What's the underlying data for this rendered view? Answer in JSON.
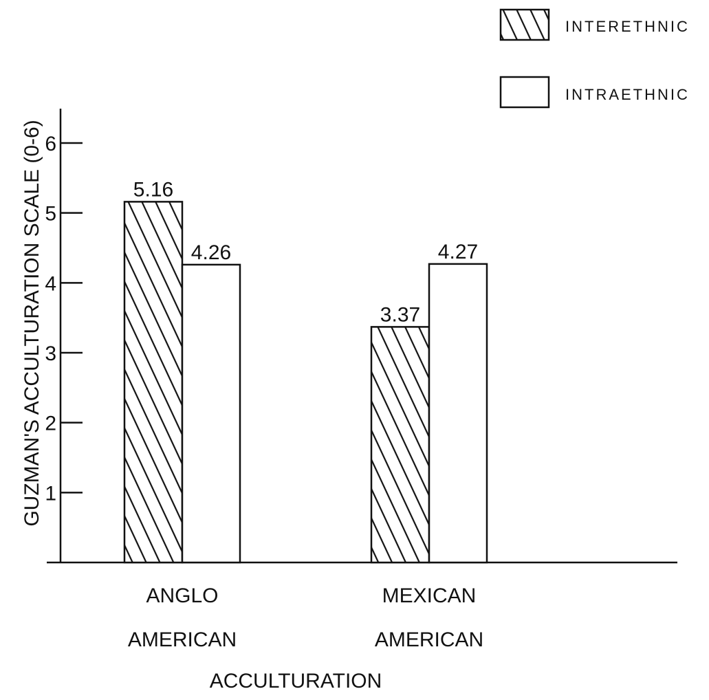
{
  "chart_data": {
    "type": "bar",
    "title": "",
    "xlabel": "ACCULTURATION",
    "ylabel": "GUZMAN'S ACCULTURATION SCALE (0-6)",
    "ylim": [
      0,
      6
    ],
    "yticks": [
      "1",
      "2",
      "3",
      "4",
      "5",
      "6"
    ],
    "grid": false,
    "legend_position": "top-right",
    "categories": [
      [
        "ANGLO",
        "AMERICAN"
      ],
      [
        "MEXICAN",
        "AMERICAN"
      ]
    ],
    "series": [
      {
        "name": "INTERETHNIC",
        "fill": "hatched",
        "values": [
          5.16,
          3.37
        ],
        "value_labels": [
          "5.16",
          "3.37"
        ]
      },
      {
        "name": "INTRAETHNIC",
        "fill": "open",
        "values": [
          4.26,
          4.27
        ],
        "value_labels": [
          "4.26",
          "4.27"
        ]
      }
    ],
    "colors": {
      "ink": "#111111",
      "background": "#ffffff"
    }
  }
}
